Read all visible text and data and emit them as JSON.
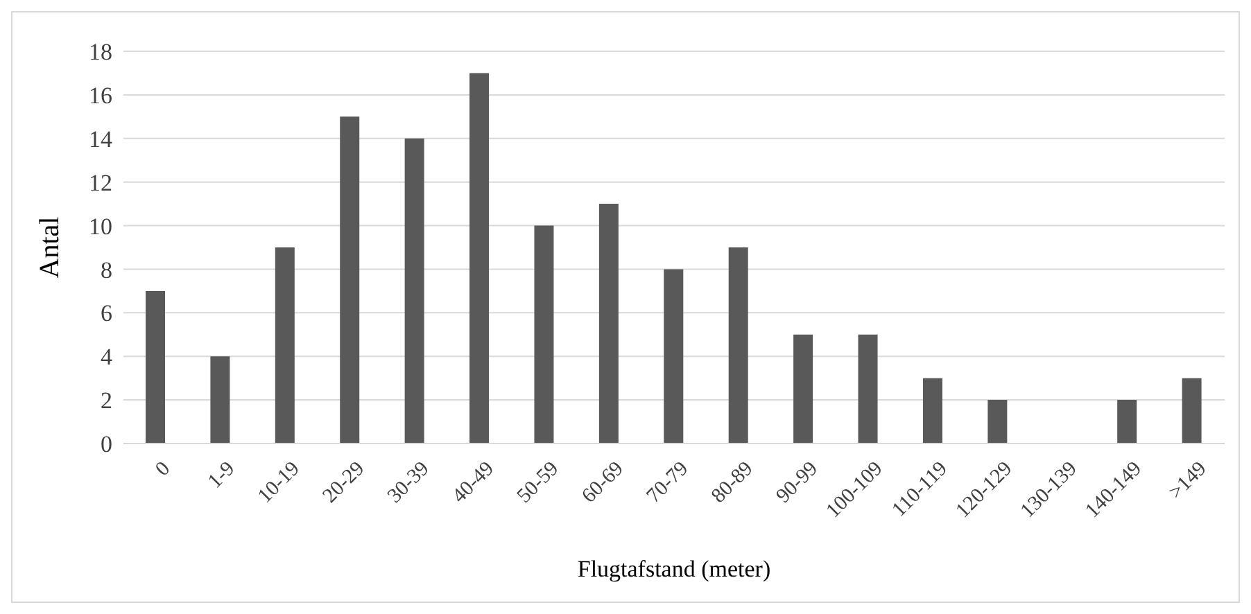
{
  "chart_data": {
    "type": "bar",
    "xlabel": "Flugtafstand (meter)",
    "ylabel": "Antal",
    "categories": [
      "0",
      "1-9",
      "10-19",
      "20-29",
      "30-39",
      "40-49",
      "50-59",
      "60-69",
      "70-79",
      "80-89",
      "90-99",
      "100-109",
      "110-119",
      "120-129",
      "130-139",
      "140-149",
      ">149"
    ],
    "values": [
      7,
      4,
      9,
      15,
      14,
      17,
      10,
      11,
      8,
      9,
      5,
      5,
      3,
      2,
      0,
      2,
      3
    ],
    "color": "#595959",
    "ylim": [
      0,
      18
    ],
    "yticks": [
      0,
      2,
      4,
      6,
      8,
      10,
      12,
      14,
      16,
      18
    ],
    "grid": "y"
  }
}
